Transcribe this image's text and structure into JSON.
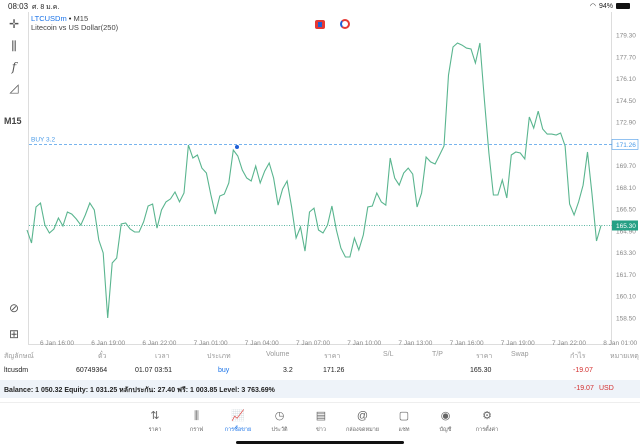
{
  "status": {
    "time": "08:03",
    "date": "ศ. 8 ม.ค.",
    "battery": "94%"
  },
  "left_toolbar": {
    "timeframe": "M15",
    "icons": [
      "crosshair-icon",
      "candles-icon",
      "function-icon",
      "objects-icon",
      "zoom-icon",
      "add-icon"
    ]
  },
  "header": {
    "symbol": "LTCUSDm",
    "dot": "•",
    "timeframe": "M15",
    "description": "Litecoin vs US Dollar(250)"
  },
  "colors": {
    "line": "#5ab58f",
    "buy_line": "#4a9be8",
    "price_label": "#26a085",
    "loss": "#d32f2f",
    "accent": "#1a73e8"
  },
  "chart_data": {
    "type": "line",
    "ylim": [
      157.5,
      180.3
    ],
    "y_ticks": [
      "179.30",
      "177.70",
      "176.10",
      "174.50",
      "172.90",
      "171.26",
      "169.70",
      "168.10",
      "166.50",
      "164.90",
      "163.30",
      "161.70",
      "160.10",
      "158.50"
    ],
    "x_ticks": [
      "6 Jan 16:00",
      "6 Jan 19:00",
      "6 Jan 22:00",
      "7 Jan 01:00",
      "7 Jan 04:00",
      "7 Jan 07:00",
      "7 Jan 10:00",
      "7 Jan 13:00",
      "7 Jan 16:00",
      "7 Jan 19:00",
      "7 Jan 22:00",
      "8 Jan 01:00"
    ],
    "buy_level": 171.26,
    "buy_label": "BUY 3.2",
    "current_price": 165.3,
    "current_label": "165.30",
    "buy_price_label": "171.26",
    "values": [
      164.97,
      164.01,
      166.66,
      166.95,
      165.33,
      164.75,
      165.04,
      165.85,
      165.26,
      166.29,
      166.14,
      165.78,
      165.33,
      166.07,
      166.95,
      166.44,
      164.23,
      163.28,
      158.5,
      162.54,
      162.91,
      165.41,
      165.48,
      165.04,
      164.82,
      164.82,
      165.56,
      166.73,
      166.88,
      165.11,
      166.44,
      167.03,
      167.25,
      167.76,
      167.03,
      167.69,
      171.21,
      170.26,
      170.48,
      169.52,
      169.16,
      167.54,
      166.14,
      167.47,
      167.61,
      168.42,
      170.85,
      170.41,
      169.38,
      168.79,
      168.57,
      169.67,
      168.42,
      169.3,
      169.89,
      168.79,
      166.8,
      167.98,
      168.57,
      166.66,
      164.38,
      165.19,
      163.42,
      166.29,
      166.58,
      164.97,
      164.75,
      165.33,
      166.73,
      164.97,
      163.64,
      162.98,
      162.98,
      164.38,
      163.5,
      164.6,
      166.66,
      166.73,
      167.69,
      167.03,
      166.8,
      170.26,
      168.79,
      168.27,
      169.16,
      169.52,
      169.08,
      166.66,
      167.69,
      170.33,
      169.97,
      169.82,
      170.48,
      171.14,
      176.36,
      178.42,
      178.71,
      178.56,
      178.34,
      178.27,
      177.24,
      178.71,
      174.52,
      170.63,
      167.54,
      167.54,
      168.64,
      167.32,
      170.48,
      170.7,
      170.63,
      170.19,
      173.27,
      172.46,
      173.71,
      172.39,
      172.02,
      172.02,
      171.95,
      172.1,
      171.14,
      166.88,
      166.07,
      167.03,
      168.27,
      170.7,
      167.61,
      164.16,
      165.3
    ]
  },
  "table": {
    "headers": [
      "สัญลักษณ์",
      "ตั๋ว",
      "เวลา",
      "ประเภท",
      "Volume",
      "ราคา",
      "S/L",
      "T/P",
      "ราคา",
      "Swap",
      "กำไร",
      "หมายเหตุ"
    ],
    "rows": [
      {
        "symbol": "ltcusdm",
        "ticket": "60749364",
        "time": "01.07 03:51",
        "type": "buy",
        "volume": "3.2",
        "open_price": "171.26",
        "sl": "",
        "tp": "",
        "price": "165.30",
        "swap": "",
        "profit": "-19.07",
        "comment": ""
      }
    ]
  },
  "balance": {
    "text": "Balance: 1 050.32 Equity: 1 031.25 หลักประกัน: 27.40 ฟรี: 1 003.85 Level: 3 763.69%",
    "profit": "-19.07",
    "currency": "USD"
  },
  "nav": [
    {
      "label": "ราคา",
      "icon": "quotes-icon",
      "glyph": "⇅"
    },
    {
      "label": "กราฟ",
      "icon": "chart-icon",
      "glyph": "⫼"
    },
    {
      "label": "การซื้อขาย",
      "icon": "trade-icon",
      "glyph": "📈",
      "active": true
    },
    {
      "label": "ประวัติ",
      "icon": "history-icon",
      "glyph": "◷"
    },
    {
      "label": "ข่าว",
      "icon": "news-icon",
      "glyph": "▤"
    },
    {
      "label": "กล่องจดหมาย",
      "icon": "mailbox-icon",
      "glyph": "@"
    },
    {
      "label": "แชท",
      "icon": "chat-icon",
      "glyph": "▢"
    },
    {
      "label": "บัญชี",
      "icon": "account-icon",
      "glyph": "◉"
    },
    {
      "label": "การตั้งค่า",
      "icon": "settings-icon",
      "glyph": "⚙"
    }
  ]
}
